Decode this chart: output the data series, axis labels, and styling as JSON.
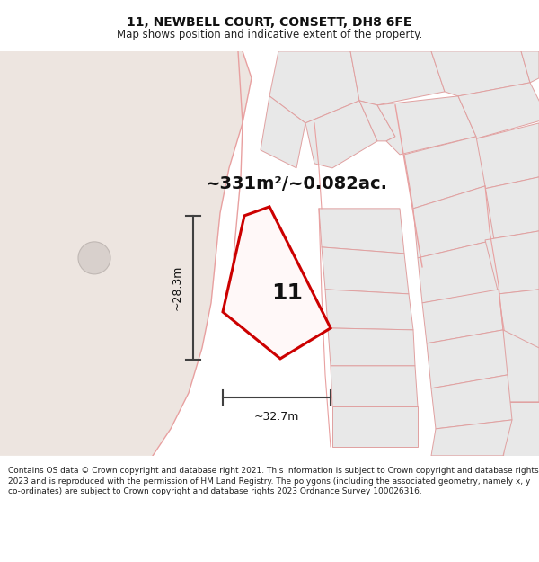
{
  "title": "11, NEWBELL COURT, CONSETT, DH8 6FE",
  "subtitle": "Map shows position and indicative extent of the property.",
  "area_text": "~331m²/~0.082ac.",
  "label_number": "11",
  "dim_width": "~32.7m",
  "dim_height": "~28.3m",
  "footer_text": "Contains OS data © Crown copyright and database right 2021. This information is subject to Crown copyright and database rights 2023 and is reproduced with the permission of HM Land Registry. The polygons (including the associated geometry, namely x, y co-ordinates) are subject to Crown copyright and database rights 2023 Ordnance Survey 100026316.",
  "bg_color": "#ffffff",
  "map_bg_color": "#ffffff",
  "beige_color": "#ede5e0",
  "building_fill": "#e8e8e8",
  "building_edge": "#e0a0a0",
  "pink_line": "#e8a0a0",
  "red_line": "#cc0000",
  "dim_line_color": "#404040",
  "title_fontsize": 10,
  "subtitle_fontsize": 8.5,
  "area_fontsize": 14,
  "label_fontsize": 18,
  "dim_fontsize": 9,
  "footer_fontsize": 6.5
}
